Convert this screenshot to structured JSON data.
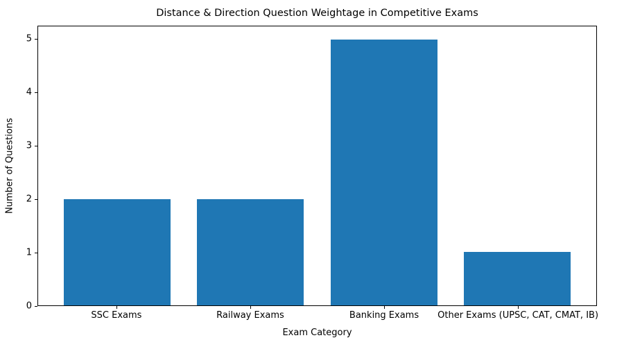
{
  "chart_data": {
    "type": "bar",
    "title": "Distance & Direction Question Weightage in Competitive Exams",
    "xlabel": "Exam Category",
    "ylabel": "Number of Questions",
    "categories": [
      "SSC Exams",
      "Railway Exams",
      "Banking Exams",
      "Other Exams (UPSC, CAT, CMAT, IB)"
    ],
    "values": [
      2,
      2,
      5,
      1
    ],
    "yticks": [
      0,
      1,
      2,
      3,
      4,
      5
    ],
    "ylim": [
      0,
      5.25
    ],
    "bar_width": 0.8,
    "x_margin": 0.05,
    "bar_color": "#1f77b4",
    "axis_color": "#000000",
    "grid": false,
    "legend_position": "none"
  }
}
